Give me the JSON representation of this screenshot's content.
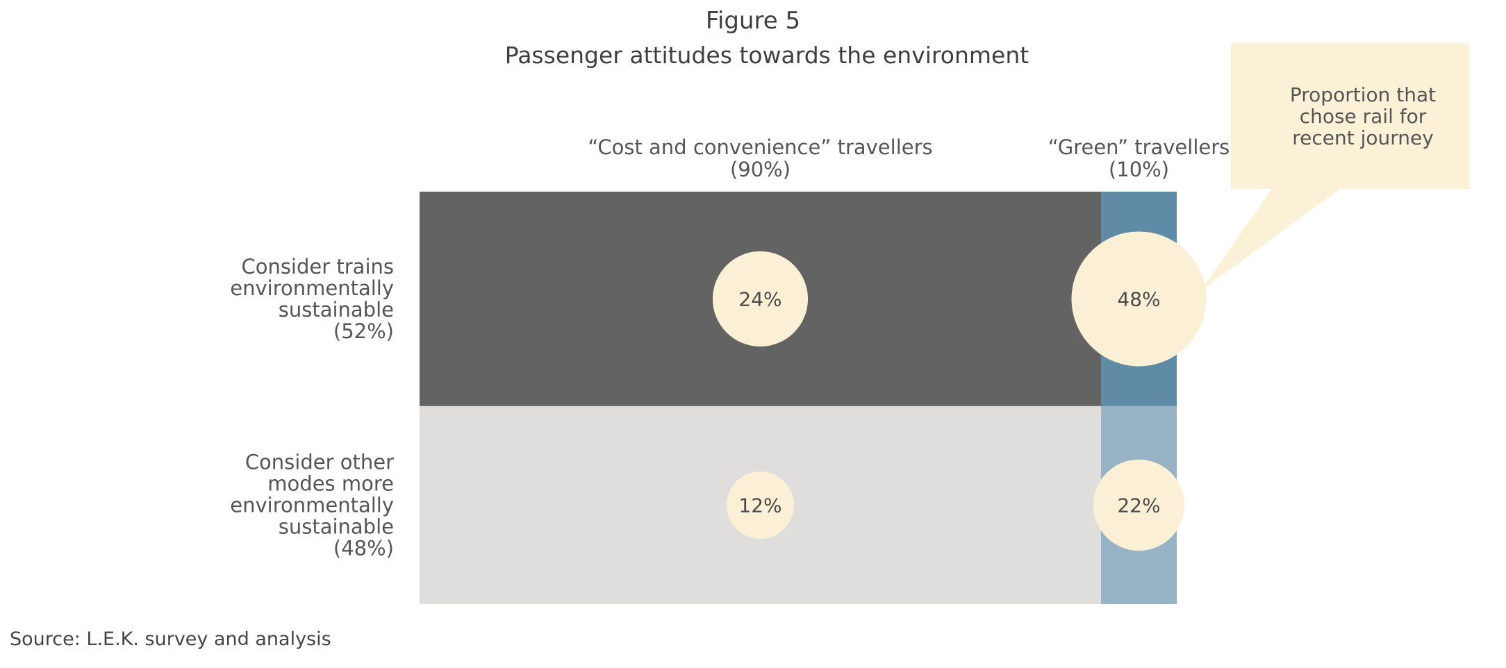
{
  "figure_label": "Figure 5",
  "title": "Passenger attitudes towards the environment",
  "source": "Source: L.E.K. survey and analysis",
  "callout": [
    "Proportion that",
    "chose rail for",
    "recent journey"
  ],
  "colors": {
    "cost_sustainable": "#636363",
    "cost_other": "#dfdedd",
    "green_sustainable": "#5f8ba6",
    "green_other": "#98b3c5",
    "bubble": "#fbf0d6",
    "callout": "#fbf1d6"
  },
  "chart_data": {
    "type": "marimekko",
    "title": "Passenger attitudes towards the environment",
    "columns": [
      {
        "key": "cost",
        "label": [
          "“Cost and convenience” travellers",
          "(90%)"
        ],
        "share": 90
      },
      {
        "key": "green",
        "label": [
          "“Green” travellers",
          "(10%)"
        ],
        "share": 10
      }
    ],
    "rows": [
      {
        "key": "sustainable",
        "label": [
          "Consider trains",
          "environmentally",
          "sustainable",
          "(52%)"
        ],
        "share": 52
      },
      {
        "key": "other",
        "label": [
          "Consider other",
          "modes more",
          "environmentally",
          "sustainable",
          "(48%)"
        ],
        "share": 48
      }
    ],
    "cells": [
      {
        "row": "sustainable",
        "column": "cost",
        "value": 24,
        "label": "24%"
      },
      {
        "row": "sustainable",
        "column": "green",
        "value": 48,
        "label": "48%"
      },
      {
        "row": "other",
        "column": "cost",
        "value": 12,
        "label": "12%"
      },
      {
        "row": "other",
        "column": "green",
        "value": 22,
        "label": "22%"
      }
    ],
    "bubble_measure": "Proportion that chose rail for recent journey"
  }
}
